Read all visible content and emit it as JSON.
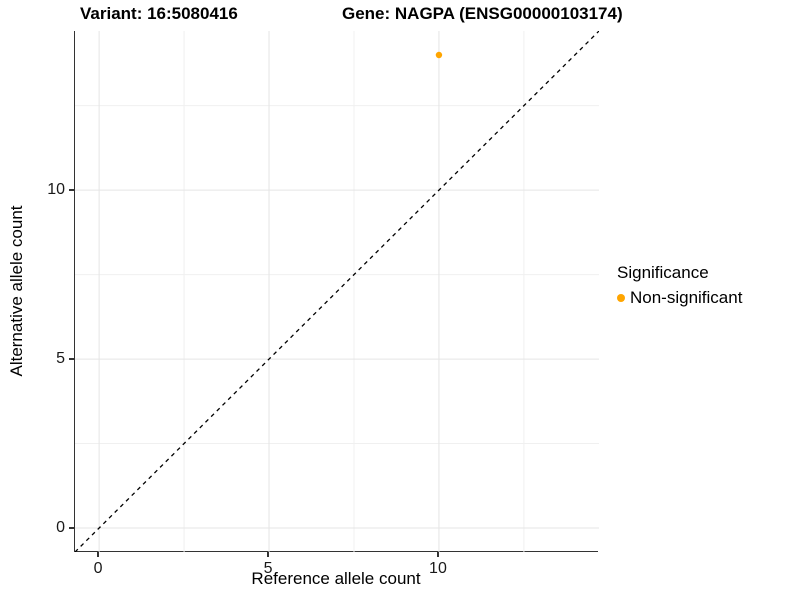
{
  "titles": {
    "variant": "Variant: 16:5080416",
    "gene": "Gene: NAGPA (ENSG00000103174)"
  },
  "chart_data": {
    "type": "scatter",
    "title_left": "Variant: 16:5080416",
    "title_right": "Gene: NAGPA (ENSG00000103174)",
    "xlabel": "Reference allele count",
    "ylabel": "Alternative allele count",
    "xlim": [
      -0.71,
      14.71
    ],
    "ylim": [
      -0.71,
      14.71
    ],
    "x_major_ticks": [
      0,
      5,
      10
    ],
    "y_major_ticks": [
      0,
      5,
      10
    ],
    "x_minor_ticks": [
      2.5,
      7.5,
      12.5
    ],
    "y_minor_ticks": [
      2.5,
      7.5,
      12.5
    ],
    "grid": true,
    "legend_position": "right",
    "series": [
      {
        "name": "Non-significant",
        "color": "#FFA500",
        "points": [
          {
            "x": 10,
            "y": 14
          }
        ]
      }
    ],
    "reference_line": {
      "description": "identity line y = x",
      "slope": 1,
      "intercept": 0,
      "style": "dashed",
      "color": "#000000"
    },
    "legend": {
      "title": "Significance",
      "items": [
        {
          "label": "Non-significant",
          "color": "#FFA500"
        }
      ]
    }
  },
  "colors": {
    "point": "#FFA500",
    "grid_major": "#E5E5E5",
    "grid_minor": "#F0F0F0",
    "axis_line": "#333333",
    "text": "#000000"
  }
}
